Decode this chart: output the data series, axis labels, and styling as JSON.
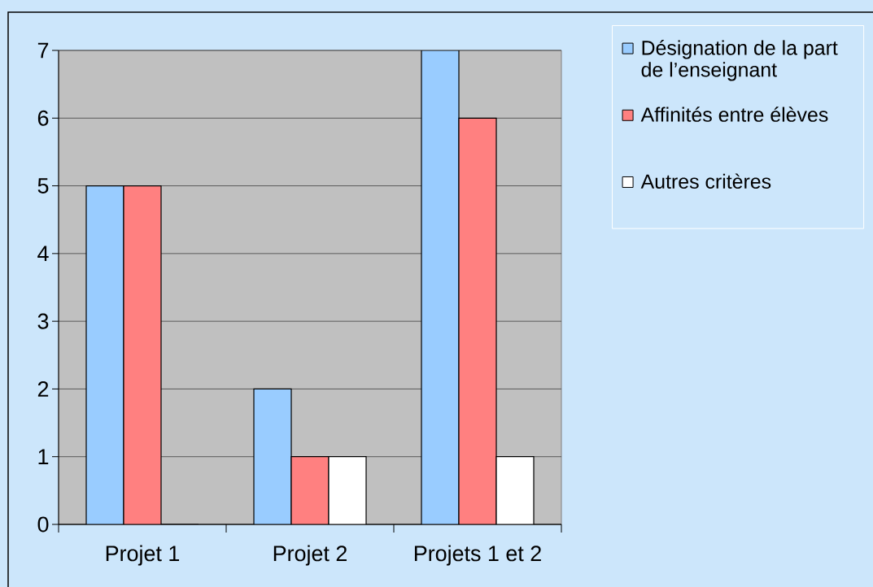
{
  "chart_data": {
    "type": "bar",
    "categories": [
      "Projet 1",
      "Projet 2",
      "Projets 1 et 2"
    ],
    "series": [
      {
        "name": "Désignation de la part de l’enseignant",
        "color": "#99ccff",
        "values": [
          5,
          2,
          7
        ]
      },
      {
        "name": "Affinités entre élèves",
        "color": "#ff8080",
        "values": [
          5,
          1,
          6
        ]
      },
      {
        "name": "Autres critères",
        "color": "#ffffff",
        "values": [
          0,
          1,
          1
        ]
      }
    ],
    "ylim": [
      0,
      7
    ],
    "yticks": [
      0,
      1,
      2,
      3,
      4,
      5,
      6,
      7
    ],
    "grid": "y",
    "legend": "top right"
  }
}
